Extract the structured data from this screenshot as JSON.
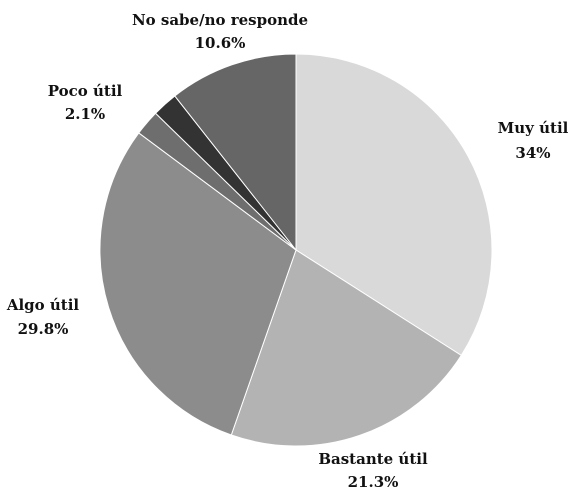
{
  "chart_data": {
    "type": "pie",
    "title": "",
    "start": "top",
    "direction": "clockwise",
    "slices": [
      {
        "label": "Muy útil",
        "value_label": "34%",
        "value": 34,
        "color": "#d9d9d9"
      },
      {
        "label": "Bastante útil",
        "value_label": "21.3%",
        "value": 21.3,
        "color": "#b3b3b3"
      },
      {
        "label": "Algo útil",
        "value_label": "29.8%",
        "value": 29.8,
        "color": "#8c8c8c"
      },
      {
        "label": "",
        "value_label": "",
        "value": 2.1,
        "color": "#6e6e6e"
      },
      {
        "label": "Poco útil",
        "value_label": "2.1%",
        "value": 2.1,
        "color": "#333333"
      },
      {
        "label": "No sabe/no responde",
        "value_label": "10.6%",
        "value": 10.6,
        "color": "#666666"
      }
    ]
  }
}
